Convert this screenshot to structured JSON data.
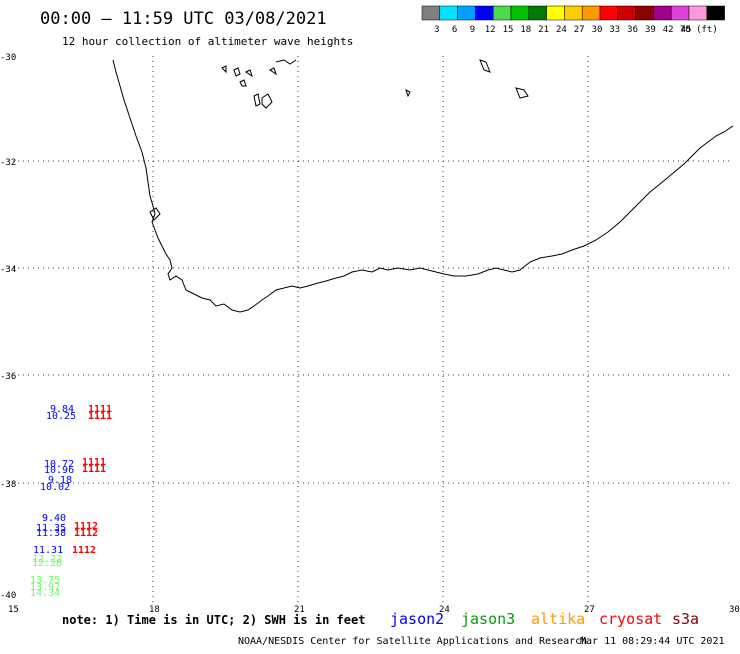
{
  "header": {
    "title": "00:00 – 11:59 UTC 03/08/2021",
    "subtitle": "12 hour collection of altimeter wave heights"
  },
  "colorbar": {
    "labels": [
      "3",
      "6",
      "9",
      "12",
      "15",
      "18",
      "21",
      "24",
      "27",
      "30",
      "33",
      "36",
      "39",
      "42",
      "45",
      "70 (ft)"
    ],
    "colors": [
      "#7f7f7f",
      "#00e5ff",
      "#00a2ff",
      "#0000ff",
      "#4cd94c",
      "#00c000",
      "#007a00",
      "#ffff00",
      "#ffcc00",
      "#ff9900",
      "#ff0000",
      "#cc0000",
      "#8b0000",
      "#a0008b",
      "#dd44dd",
      "#ff99dd",
      "#000000"
    ]
  },
  "map": {
    "lon_ticks": [
      "15",
      "18",
      "21",
      "24",
      "27",
      "30"
    ],
    "lat_ticks": [
      "-30",
      "-32",
      "-34",
      "-36",
      "-38",
      "-40"
    ]
  },
  "observations": [
    {
      "text": "9.84",
      "color": "#0000ff"
    },
    {
      "text": "10.25",
      "color": "#0000ff"
    },
    {
      "text": "1111",
      "color": "#ff0000"
    },
    {
      "text": "1111",
      "color": "#ff0000"
    },
    {
      "text": "10.72",
      "color": "#0000ff"
    },
    {
      "text": "10.96",
      "color": "#0000ff"
    },
    {
      "text": "1111",
      "color": "#ff0000"
    },
    {
      "text": "1111",
      "color": "#ff0000"
    },
    {
      "text": "9.18",
      "color": "#0000ff"
    },
    {
      "text": "10.02",
      "color": "#0000ff"
    },
    {
      "text": "9.40",
      "color": "#0000ff"
    },
    {
      "text": "11.35",
      "color": "#0000ff"
    },
    {
      "text": "11.38",
      "color": "#0000ff"
    },
    {
      "text": "1112",
      "color": "#ff0000"
    },
    {
      "text": "1112",
      "color": "#ff0000"
    },
    {
      "text": "11.31",
      "color": "#0000ff"
    },
    {
      "text": "1112",
      "color": "#ff0000"
    },
    {
      "text": "12.22",
      "color": "#66ff66"
    },
    {
      "text": "12.28",
      "color": "#66ff66"
    },
    {
      "text": "13.75",
      "color": "#66ff66"
    },
    {
      "text": "13.97",
      "color": "#66ff66"
    },
    {
      "text": "14.34",
      "color": "#66ff66"
    }
  ],
  "footer": {
    "note": "note: 1) Time is in UTC; 2) SWH is in feet",
    "satellites": [
      {
        "name": "jason2",
        "color": "#0000ff"
      },
      {
        "name": "jason3",
        "color": "#00a000"
      },
      {
        "name": "altika",
        "color": "#ff9900"
      },
      {
        "name": "cryosat",
        "color": "#ff0000"
      },
      {
        "name": "s3a",
        "color": "#8b0000"
      }
    ],
    "credit": "NOAA/NESDIS Center for Satellite Applications and Research",
    "timestamp": "Mar 11 08:29:44 UTC 2021"
  }
}
